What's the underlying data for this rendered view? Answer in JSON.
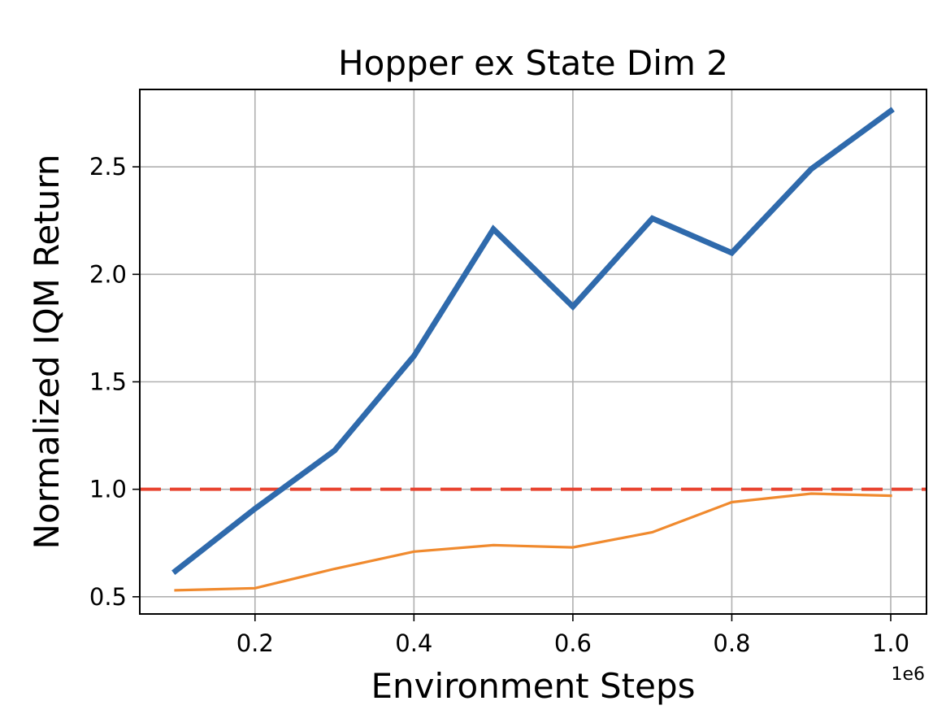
{
  "chart_data": {
    "type": "line",
    "title": "Hopper ex State Dim 2",
    "xlabel": "Environment Steps",
    "ylabel": "Normalized IQM Return",
    "x_offset_label": "1e6",
    "xlim": [
      0.055,
      1.045
    ],
    "ylim": [
      0.42,
      2.86
    ],
    "x_ticks": [
      0.2,
      0.4,
      0.6,
      0.8,
      1.0
    ],
    "x_tick_labels": [
      "0.2",
      "0.4",
      "0.6",
      "0.8",
      "1.0"
    ],
    "y_ticks": [
      0.5,
      1.0,
      1.5,
      2.0,
      2.5
    ],
    "y_tick_labels": [
      "0.5",
      "1.0",
      "1.5",
      "2.0",
      "2.5"
    ],
    "grid": true,
    "x": [
      0.1,
      0.2,
      0.3,
      0.4,
      0.5,
      0.6,
      0.7,
      0.8,
      0.9,
      1.0
    ],
    "series": [
      {
        "color": "#2f6aac",
        "line_width": "thick",
        "values": [
          0.62,
          0.91,
          1.18,
          1.62,
          2.21,
          1.85,
          2.26,
          2.1,
          2.49,
          2.76
        ]
      },
      {
        "color": "#f08a2e",
        "line_width": "thin",
        "values": [
          0.53,
          0.54,
          0.63,
          0.71,
          0.74,
          0.73,
          0.8,
          0.94,
          0.98,
          0.97
        ]
      }
    ],
    "reference_lines": [
      {
        "y": 1.0,
        "color": "#e8432f",
        "style": "dashed"
      }
    ]
  }
}
